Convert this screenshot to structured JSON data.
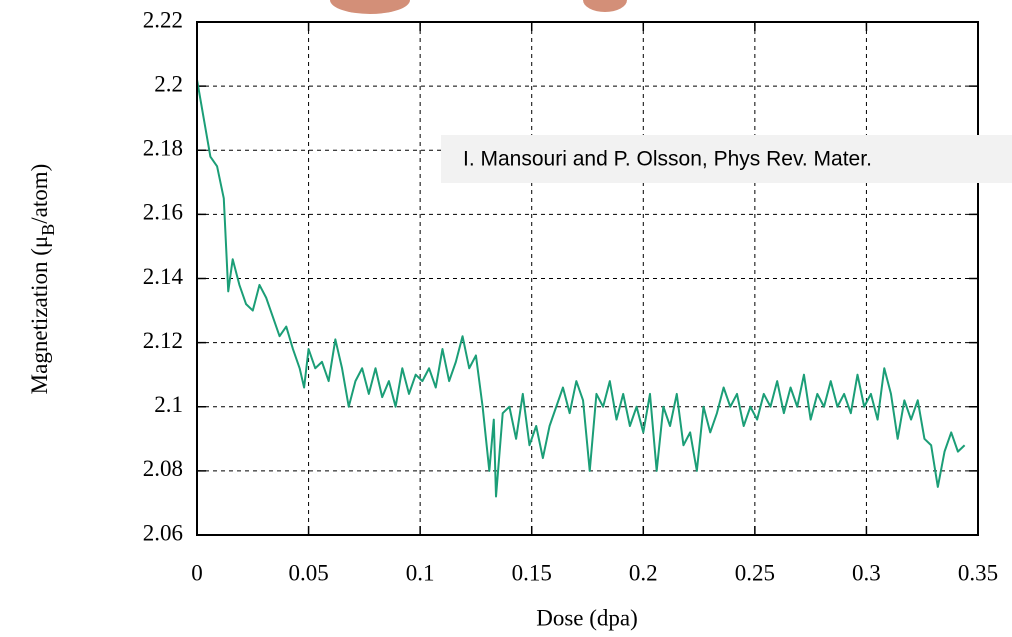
{
  "chart_data": {
    "type": "line",
    "xlabel": "Dose (dpa)",
    "ylabel": [
      "Magnetization (μ",
      "B",
      "/atom)"
    ],
    "annotation": "I. Mansouri and P. Olsson, Phys Rev. Mater.",
    "color": "#1b9e77",
    "grid": true,
    "xlim": [
      0,
      0.35
    ],
    "xticks": [
      0,
      0.05,
      0.1,
      0.15,
      0.2,
      0.25,
      0.3,
      0.35
    ],
    "ylim": [
      2.06,
      2.22
    ],
    "yticks": [
      2.06,
      2.08,
      2.1,
      2.12,
      2.14,
      2.16,
      2.18,
      2.2,
      2.22
    ],
    "x": [
      0,
      0.003,
      0.006,
      0.009,
      0.012,
      0.014,
      0.016,
      0.019,
      0.022,
      0.025,
      0.028,
      0.031,
      0.034,
      0.037,
      0.04,
      0.043,
      0.046,
      0.048,
      0.05,
      0.053,
      0.056,
      0.059,
      0.062,
      0.065,
      0.068,
      0.071,
      0.074,
      0.077,
      0.08,
      0.083,
      0.086,
      0.089,
      0.092,
      0.095,
      0.098,
      0.101,
      0.104,
      0.107,
      0.11,
      0.113,
      0.116,
      0.119,
      0.122,
      0.125,
      0.128,
      0.131,
      0.133,
      0.134,
      0.137,
      0.14,
      0.143,
      0.146,
      0.149,
      0.152,
      0.155,
      0.158,
      0.161,
      0.164,
      0.167,
      0.17,
      0.173,
      0.176,
      0.179,
      0.182,
      0.185,
      0.188,
      0.191,
      0.194,
      0.197,
      0.2,
      0.203,
      0.206,
      0.209,
      0.212,
      0.215,
      0.218,
      0.221,
      0.224,
      0.227,
      0.23,
      0.233,
      0.236,
      0.239,
      0.242,
      0.245,
      0.248,
      0.251,
      0.254,
      0.257,
      0.26,
      0.263,
      0.266,
      0.269,
      0.272,
      0.275,
      0.278,
      0.281,
      0.284,
      0.287,
      0.29,
      0.293,
      0.296,
      0.299,
      0.302,
      0.305,
      0.308,
      0.311,
      0.314,
      0.317,
      0.32,
      0.323,
      0.326,
      0.329,
      0.332,
      0.335,
      0.338,
      0.341,
      0.344
    ],
    "values": [
      2.202,
      2.19,
      2.178,
      2.175,
      2.165,
      2.136,
      2.146,
      2.138,
      2.132,
      2.13,
      2.138,
      2.134,
      2.128,
      2.122,
      2.125,
      2.118,
      2.112,
      2.106,
      2.118,
      2.112,
      2.114,
      2.108,
      2.121,
      2.112,
      2.1,
      2.108,
      2.112,
      2.104,
      2.112,
      2.103,
      2.108,
      2.1,
      2.112,
      2.104,
      2.11,
      2.108,
      2.112,
      2.106,
      2.118,
      2.108,
      2.114,
      2.122,
      2.112,
      2.116,
      2.1,
      2.08,
      2.096,
      2.072,
      2.098,
      2.1,
      2.09,
      2.104,
      2.088,
      2.094,
      2.084,
      2.094,
      2.1,
      2.106,
      2.098,
      2.108,
      2.102,
      2.08,
      2.104,
      2.1,
      2.108,
      2.096,
      2.104,
      2.094,
      2.1,
      2.092,
      2.104,
      2.08,
      2.1,
      2.094,
      2.104,
      2.088,
      2.092,
      2.08,
      2.1,
      2.092,
      2.098,
      2.106,
      2.1,
      2.104,
      2.094,
      2.1,
      2.096,
      2.104,
      2.1,
      2.108,
      2.098,
      2.106,
      2.1,
      2.11,
      2.096,
      2.104,
      2.1,
      2.108,
      2.1,
      2.104,
      2.098,
      2.11,
      2.1,
      2.104,
      2.096,
      2.112,
      2.104,
      2.09,
      2.102,
      2.096,
      2.102,
      2.09,
      2.088,
      2.075,
      2.086,
      2.092,
      2.086,
      2.088
    ]
  }
}
